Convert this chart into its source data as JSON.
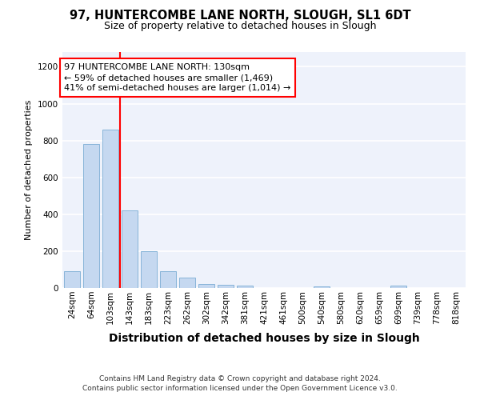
{
  "title": "97, HUNTERCOMBE LANE NORTH, SLOUGH, SL1 6DT",
  "subtitle": "Size of property relative to detached houses in Slough",
  "xlabel": "Distribution of detached houses by size in Slough",
  "ylabel": "Number of detached properties",
  "categories": [
    "24sqm",
    "64sqm",
    "103sqm",
    "143sqm",
    "183sqm",
    "223sqm",
    "262sqm",
    "302sqm",
    "342sqm",
    "381sqm",
    "421sqm",
    "461sqm",
    "500sqm",
    "540sqm",
    "580sqm",
    "620sqm",
    "659sqm",
    "699sqm",
    "739sqm",
    "778sqm",
    "818sqm"
  ],
  "values": [
    90,
    780,
    860,
    420,
    200,
    90,
    55,
    22,
    18,
    15,
    0,
    0,
    0,
    10,
    0,
    0,
    0,
    12,
    0,
    0,
    0
  ],
  "bar_color": "#c5d8f0",
  "bar_edge_color": "#7aadd4",
  "property_line_x": 3,
  "property_line_color": "red",
  "annotation_text": "97 HUNTERCOMBE LANE NORTH: 130sqm\n← 59% of detached houses are smaller (1,469)\n41% of semi-detached houses are larger (1,014) →",
  "annotation_box_color": "white",
  "annotation_box_edge_color": "red",
  "ylim": [
    0,
    1280
  ],
  "yticks": [
    0,
    200,
    400,
    600,
    800,
    1000,
    1200
  ],
  "background_color": "#eef2fb",
  "footer_text": "Contains HM Land Registry data © Crown copyright and database right 2024.\nContains public sector information licensed under the Open Government Licence v3.0.",
  "title_fontsize": 10.5,
  "subtitle_fontsize": 9,
  "xlabel_fontsize": 10,
  "ylabel_fontsize": 8,
  "footer_fontsize": 6.5,
  "tick_fontsize": 7.5,
  "annotation_fontsize": 8
}
